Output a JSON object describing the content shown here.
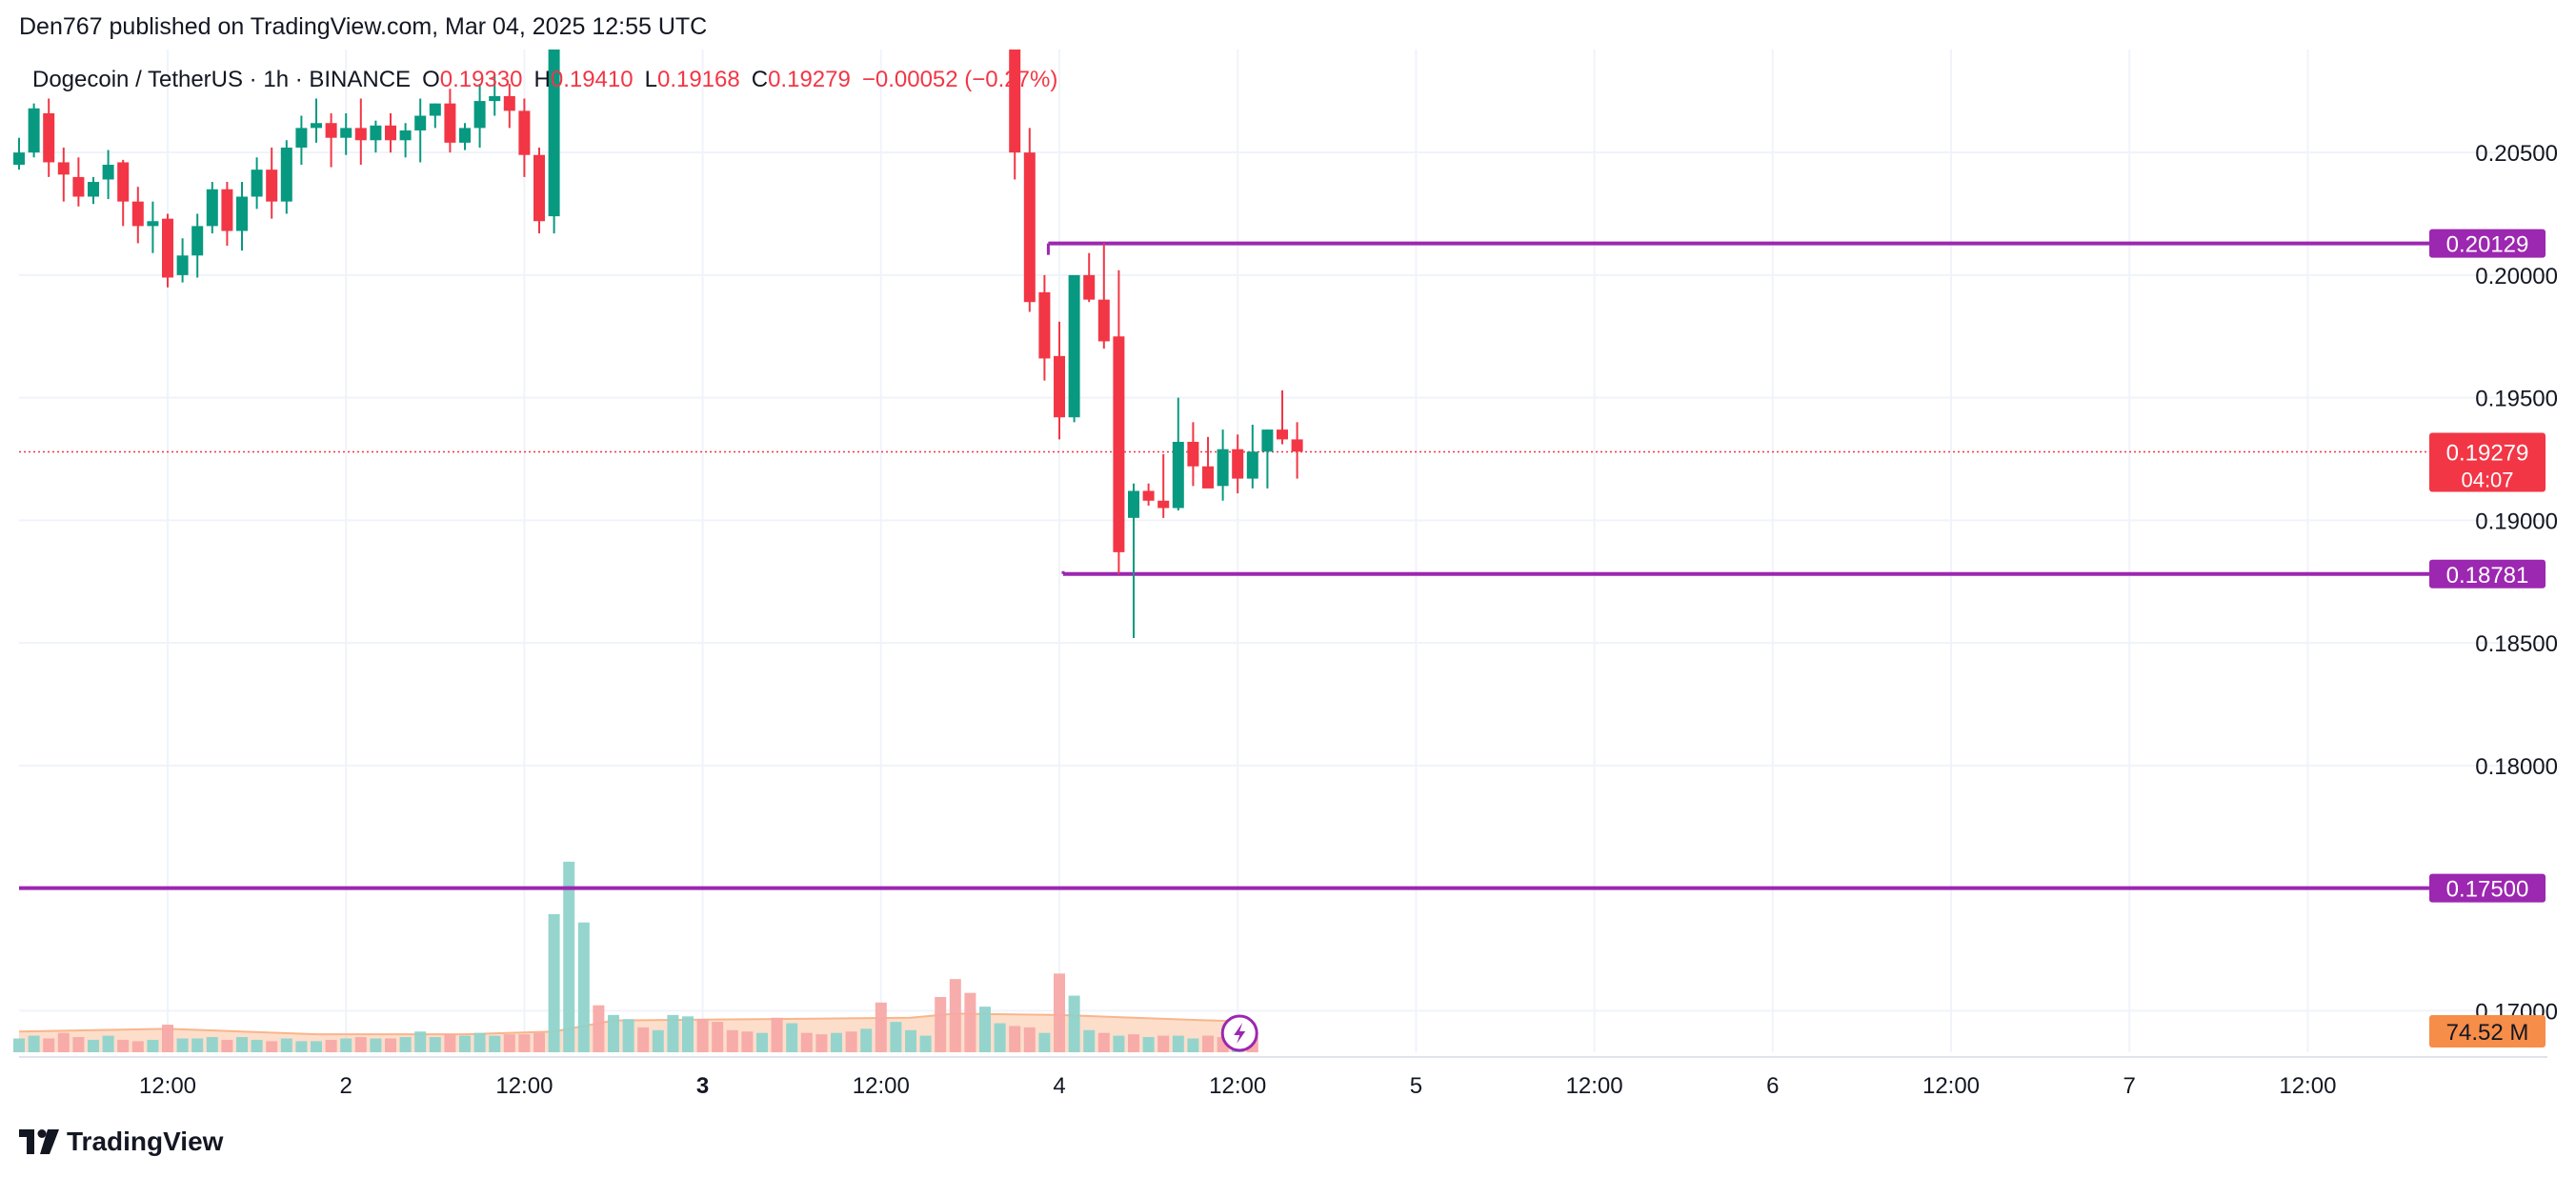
{
  "header": {
    "published": "Den767 published on TradingView.com, Mar 04, 2025 12:55 UTC"
  },
  "legend": {
    "symbol": "Dogecoin / TetherUS · 1h · BINANCE",
    "o_label": "O",
    "o_value": "0.19330",
    "h_label": "H",
    "h_value": "0.19410",
    "l_label": "L",
    "l_value": "0.19168",
    "c_label": "C",
    "c_value": "0.19279",
    "change": "−0.00052 (−0.27%)"
  },
  "footer": {
    "brand": "TradingView"
  },
  "colors": {
    "up": "#089981",
    "down": "#f23645",
    "level": "#9c27b0",
    "volume_up": "#8fd3cb",
    "volume_down": "#f7a9a7",
    "volume_ma": "#f9b58b",
    "volume_badge": "#f68d49"
  },
  "chart_data": {
    "type": "candlestick",
    "symbol": "DOGEUSDT",
    "timeframe": "1h",
    "exchange": "BINANCE",
    "ylim": [
      0.1685,
      0.2092
    ],
    "y_ticks": [
      0.205,
      0.2,
      0.195,
      0.19,
      0.185,
      0.18,
      0.17
    ],
    "y_tick_labels": [
      "0.20500",
      "0.20000",
      "0.19500",
      "0.19000",
      "0.18500",
      "0.18000",
      "0.17000"
    ],
    "x_ticks": [
      {
        "label": "12:00",
        "index": 10,
        "bold": false
      },
      {
        "label": "2",
        "index": 22,
        "bold": false
      },
      {
        "label": "12:00",
        "index": 34,
        "bold": false
      },
      {
        "label": "3",
        "index": 46,
        "bold": true
      },
      {
        "label": "12:00",
        "index": 58,
        "bold": false
      },
      {
        "label": "4",
        "index": 70,
        "bold": false
      },
      {
        "label": "12:00",
        "index": 82,
        "bold": false
      },
      {
        "label": "5",
        "index": 94,
        "bold": false
      },
      {
        "label": "12:00",
        "index": 106,
        "bold": false
      },
      {
        "label": "6",
        "index": 118,
        "bold": false
      },
      {
        "label": "12:00",
        "index": 130,
        "bold": false
      },
      {
        "label": "7",
        "index": 142,
        "bold": false
      },
      {
        "label": "12:00",
        "index": 154,
        "bold": false
      }
    ],
    "candles": [
      [
        0.2045,
        0.2056,
        0.2043,
        0.205
      ],
      [
        0.205,
        0.207,
        0.2048,
        0.2068
      ],
      [
        0.2066,
        0.2072,
        0.204,
        0.2046
      ],
      [
        0.2046,
        0.2052,
        0.203,
        0.2041
      ],
      [
        0.204,
        0.2048,
        0.2028,
        0.2032
      ],
      [
        0.2032,
        0.204,
        0.2029,
        0.2038
      ],
      [
        0.2039,
        0.2051,
        0.2031,
        0.2045
      ],
      [
        0.2046,
        0.2047,
        0.202,
        0.203
      ],
      [
        0.203,
        0.2036,
        0.2013,
        0.202
      ],
      [
        0.202,
        0.203,
        0.2009,
        0.2022
      ],
      [
        0.2023,
        0.2025,
        0.1995,
        0.1999
      ],
      [
        0.2,
        0.2015,
        0.1997,
        0.2008
      ],
      [
        0.2008,
        0.2025,
        0.1999,
        0.202
      ],
      [
        0.202,
        0.2038,
        0.2017,
        0.2035
      ],
      [
        0.2035,
        0.2038,
        0.2012,
        0.2018
      ],
      [
        0.2018,
        0.2038,
        0.201,
        0.2032
      ],
      [
        0.2032,
        0.2048,
        0.2027,
        0.2043
      ],
      [
        0.2043,
        0.2052,
        0.2023,
        0.203
      ],
      [
        0.203,
        0.2055,
        0.2025,
        0.2052
      ],
      [
        0.2052,
        0.2065,
        0.2045,
        0.206
      ],
      [
        0.206,
        0.2072,
        0.2054,
        0.2062
      ],
      [
        0.2062,
        0.2066,
        0.2044,
        0.2056
      ],
      [
        0.2056,
        0.2066,
        0.2049,
        0.206
      ],
      [
        0.206,
        0.2072,
        0.2045,
        0.2055
      ],
      [
        0.2055,
        0.2063,
        0.205,
        0.2061
      ],
      [
        0.2061,
        0.2066,
        0.205,
        0.2055
      ],
      [
        0.2055,
        0.2062,
        0.2048,
        0.2059
      ],
      [
        0.2059,
        0.2072,
        0.2046,
        0.2065
      ],
      [
        0.2065,
        0.207,
        0.206,
        0.207
      ],
      [
        0.207,
        0.2076,
        0.205,
        0.2054
      ],
      [
        0.2054,
        0.2062,
        0.2051,
        0.206
      ],
      [
        0.206,
        0.2078,
        0.2052,
        0.2071
      ],
      [
        0.2071,
        0.2082,
        0.2065,
        0.2073
      ],
      [
        0.2073,
        0.2078,
        0.206,
        0.2067
      ],
      [
        0.2067,
        0.2072,
        0.204,
        0.2049
      ],
      [
        0.2049,
        0.2052,
        0.2017,
        0.2022
      ],
      [
        0.2024,
        0.2092,
        0.2017,
        0.2092
      ],
      null,
      null,
      null,
      null,
      null,
      null,
      null,
      null,
      null,
      null,
      null,
      null,
      null,
      null,
      null,
      null,
      null,
      null,
      null,
      null,
      null,
      null,
      null,
      null,
      null,
      null,
      null,
      null,
      null,
      null,
      [
        0.2092,
        0.2092,
        0.2039,
        0.205
      ],
      [
        0.205,
        0.206,
        0.1985,
        0.1989
      ],
      [
        0.1993,
        0.2,
        0.1957,
        0.1966
      ],
      [
        0.1967,
        0.1981,
        0.1933,
        0.1942
      ],
      [
        0.1942,
        0.1998,
        0.194,
        0.2
      ],
      [
        0.2,
        0.2009,
        0.1989,
        0.199
      ],
      [
        0.199,
        0.2013,
        0.197,
        0.1973
      ],
      [
        0.1975,
        0.2002,
        0.1878,
        0.1887
      ],
      [
        0.1901,
        0.1915,
        0.1852,
        0.1912
      ],
      [
        0.1912,
        0.1915,
        0.1906,
        0.1908
      ],
      [
        0.1908,
        0.1927,
        0.1901,
        0.1905
      ],
      [
        0.1905,
        0.195,
        0.1904,
        0.1932
      ],
      [
        0.1932,
        0.194,
        0.1914,
        0.1922
      ],
      [
        0.1922,
        0.1934,
        0.1915,
        0.1913
      ],
      [
        0.1914,
        0.1937,
        0.1908,
        0.1929
      ],
      [
        0.1929,
        0.1935,
        0.1911,
        0.1917
      ],
      [
        0.1917,
        0.1939,
        0.1913,
        0.1928
      ],
      [
        0.1928,
        0.1937,
        0.1913,
        0.1937
      ],
      [
        0.1937,
        0.1953,
        0.1931,
        0.1933
      ],
      [
        0.1933,
        0.194,
        0.1917,
        0.1928
      ]
    ],
    "volumes": [
      [
        10,
        1
      ],
      [
        12,
        1
      ],
      [
        10,
        0
      ],
      [
        14,
        0
      ],
      [
        11,
        0
      ],
      [
        9,
        1
      ],
      [
        12,
        1
      ],
      [
        9,
        0
      ],
      [
        8,
        0
      ],
      [
        9,
        1
      ],
      [
        20,
        0
      ],
      [
        10,
        1
      ],
      [
        10,
        1
      ],
      [
        11,
        1
      ],
      [
        9,
        0
      ],
      [
        11,
        1
      ],
      [
        9,
        1
      ],
      [
        8,
        0
      ],
      [
        10,
        1
      ],
      [
        8,
        1
      ],
      [
        8,
        1
      ],
      [
        9,
        0
      ],
      [
        10,
        1
      ],
      [
        11,
        0
      ],
      [
        10,
        1
      ],
      [
        10,
        0
      ],
      [
        11,
        1
      ],
      [
        15,
        1
      ],
      [
        11,
        1
      ],
      [
        13,
        0
      ],
      [
        12,
        1
      ],
      [
        14,
        1
      ],
      [
        12,
        1
      ],
      [
        13,
        0
      ],
      [
        13,
        0
      ],
      [
        14,
        0
      ],
      [
        100,
        1
      ],
      [
        138,
        1
      ],
      [
        94,
        1
      ],
      [
        34,
        0
      ],
      [
        27,
        1
      ],
      [
        24,
        1
      ],
      [
        18,
        0
      ],
      [
        16,
        1
      ],
      [
        27,
        1
      ],
      [
        26,
        1
      ],
      [
        24,
        0
      ],
      [
        22,
        0
      ],
      [
        16,
        0
      ],
      [
        15,
        0
      ],
      [
        14,
        1
      ],
      [
        25,
        0
      ],
      [
        21,
        1
      ],
      [
        14,
        0
      ],
      [
        13,
        0
      ],
      [
        14,
        1
      ],
      [
        15,
        0
      ],
      [
        17,
        1
      ],
      [
        36,
        0
      ],
      [
        22,
        1
      ],
      [
        16,
        1
      ],
      [
        12,
        1
      ],
      [
        40,
        0
      ],
      [
        53,
        0
      ],
      [
        43,
        0
      ],
      [
        33,
        1
      ],
      [
        21,
        1
      ],
      [
        19,
        0
      ],
      [
        18,
        0
      ],
      [
        14,
        1
      ],
      [
        57,
        0
      ],
      [
        41,
        1
      ],
      [
        16,
        1
      ],
      [
        14,
        0
      ],
      [
        12,
        1
      ],
      [
        13,
        0
      ],
      [
        11,
        1
      ],
      [
        12,
        0
      ],
      [
        12,
        1
      ],
      [
        10,
        1
      ],
      [
        12,
        0
      ],
      [
        11,
        0
      ],
      [
        10,
        1
      ],
      [
        11,
        0
      ]
    ],
    "volume_ma": [
      [
        0,
        15
      ],
      [
        10,
        17
      ],
      [
        20,
        13
      ],
      [
        30,
        13
      ],
      [
        36,
        15
      ],
      [
        40,
        23
      ],
      [
        50,
        24
      ],
      [
        60,
        25
      ],
      [
        63,
        28
      ],
      [
        70,
        27
      ],
      [
        75,
        25
      ],
      [
        83,
        22
      ]
    ],
    "levels": [
      {
        "price": 0.20129,
        "label": "0.20129",
        "start_index": 69
      },
      {
        "price": 0.18781,
        "label": "0.18781",
        "start_index": 70
      },
      {
        "price": 0.175,
        "label": "0.17500",
        "start_index": 0
      }
    ],
    "last_price": {
      "value": 0.19279,
      "label": "0.19279",
      "countdown": "04:07"
    },
    "volume_badge": "74.52 M",
    "grid": true
  }
}
